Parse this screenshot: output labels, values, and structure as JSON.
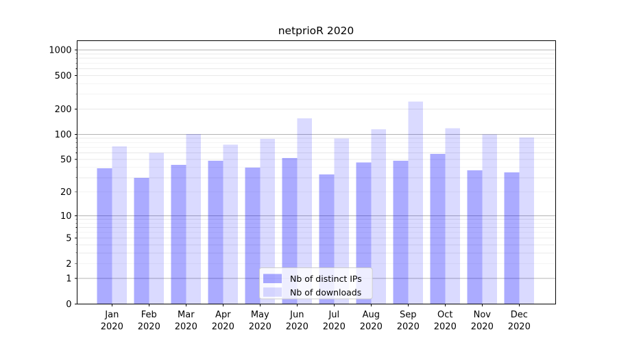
{
  "figure": {
    "title": "netprioR 2020"
  },
  "legend": {
    "items": [
      {
        "label": "Nb of distinct IPs",
        "swatch": "dark"
      },
      {
        "label": "Nb of downloads",
        "swatch": "light"
      }
    ]
  },
  "colors": {
    "bar_base": "#0000ff",
    "bar_dark_rendered": "#aaaaf8",
    "bar_light_rendered": "#dbdbf8",
    "grid_major": "#b3b3b3",
    "grid_minor": "#e8e8e8",
    "spine": "#000000",
    "text": "#000000",
    "legend_border": "#cccccc",
    "legend_bg": "#ffffff"
  },
  "chart_data": {
    "type": "bar",
    "title": "netprioR 2020",
    "x": [
      "Jan",
      "Feb",
      "Mar",
      "Apr",
      "May",
      "Jun",
      "Jul",
      "Aug",
      "Sep",
      "Oct",
      "Nov",
      "Dec"
    ],
    "x_year": "2020",
    "series": [
      {
        "name": "Nb of distinct IPs",
        "color": "#0000ff",
        "opacity": 0.33,
        "values": [
          39,
          30,
          43,
          48,
          40,
          52,
          33,
          46,
          48,
          58,
          37,
          35
        ]
      },
      {
        "name": "Nb of downloads",
        "color": "#0000ff",
        "opacity": 0.145,
        "values": [
          72,
          60,
          101,
          75,
          88,
          155,
          89,
          115,
          245,
          118,
          100,
          92
        ]
      }
    ],
    "yscale": "log1p",
    "y_ticks": [
      0,
      1,
      2,
      5,
      10,
      20,
      50,
      100,
      200,
      500,
      1000
    ],
    "ylim": [
      0,
      1280
    ],
    "grid": "major-and-minor-horizontal",
    "legend_position": "lower center inside axes"
  }
}
